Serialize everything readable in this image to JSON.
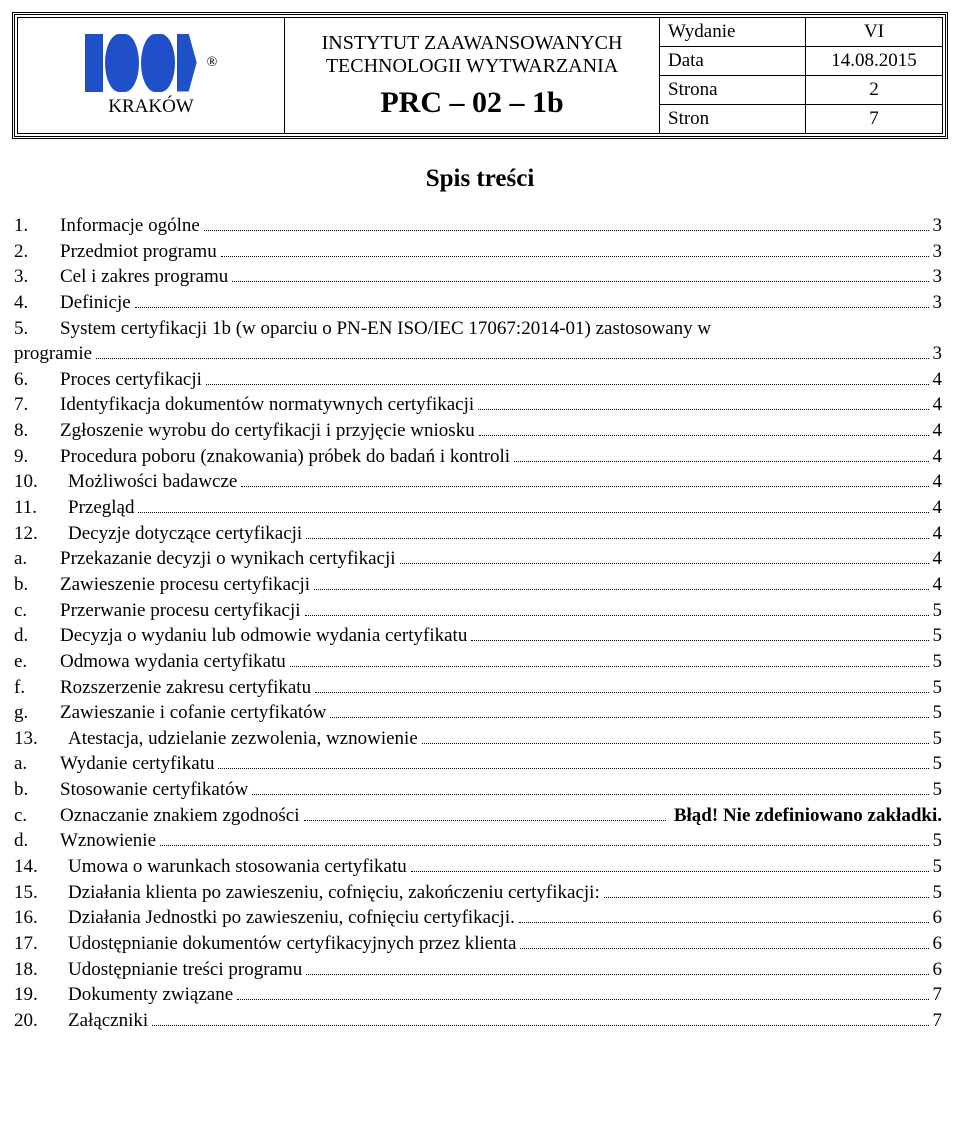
{
  "header": {
    "location": "KRAKÓW",
    "trademark": "®",
    "institute_line1": "INSTYTUT ZAAWANSOWANYCH",
    "institute_line2": "TECHNOLOGII WYTWARZANIA",
    "doc_code": "PRC – 02 – 1b",
    "info": [
      {
        "label": "Wydanie",
        "value": "VI"
      },
      {
        "label": "Data",
        "value": "14.08.2015"
      },
      {
        "label": "Strona",
        "value": "2"
      },
      {
        "label": "Stron",
        "value": "7"
      }
    ]
  },
  "toc_title": "Spis treści",
  "toc": {
    "items": [
      {
        "num": "1.",
        "text": "Informacje ogólne",
        "page": "3"
      },
      {
        "num": "2.",
        "text": "Przedmiot programu",
        "page": "3"
      },
      {
        "num": "3.",
        "text": "Cel i zakres programu",
        "page": "3"
      },
      {
        "num": "4.",
        "text": "Definicje",
        "page": "3"
      },
      {
        "num": "5.",
        "text_l1": "System certyfikacji 1b (w oparciu o PN-EN ISO/IEC 17067:2014-01) zastosowany w",
        "text_l2": "programie",
        "page": "3",
        "wrap": true
      },
      {
        "num": "6.",
        "text": "Proces certyfikacji",
        "page": "4"
      },
      {
        "num": "7.",
        "text": "Identyfikacja dokumentów normatywnych certyfikacji",
        "page": "4"
      },
      {
        "num": "8.",
        "text": "Zgłoszenie wyrobu do certyfikacji i przyjęcie wniosku",
        "page": "4"
      },
      {
        "num": "9.",
        "text": "Procedura poboru (znakowania) próbek do badań i kontroli",
        "page": "4"
      },
      {
        "num": "10.",
        "text": "Możliwości badawcze",
        "page": "4",
        "wide": true
      },
      {
        "num": "11.",
        "text": "Przegląd",
        "page": "4",
        "wide": true
      },
      {
        "num": "12.",
        "text": "Decyzje dotyczące certyfikacji",
        "page": "4",
        "wide": true
      },
      {
        "num": "a.",
        "text": "Przekazanie decyzji o wynikach certyfikacji",
        "page": "4"
      },
      {
        "num": "b.",
        "text": "Zawieszenie procesu certyfikacji",
        "page": "4"
      },
      {
        "num": "c.",
        "text": "Przerwanie procesu certyfikacji",
        "page": "5"
      },
      {
        "num": "d.",
        "text": "Decyzja o wydaniu lub odmowie wydania certyfikatu",
        "page": "5"
      },
      {
        "num": "e.",
        "text": "Odmowa wydania certyfikatu",
        "page": "5"
      },
      {
        "num": "f.",
        "text": "Rozszerzenie zakresu certyfikatu",
        "page": "5"
      },
      {
        "num": "g.",
        "text": "Zawieszanie i cofanie certyfikatów",
        "page": "5"
      },
      {
        "num": "13.",
        "text": "Atestacja, udzielanie zezwolenia, wznowienie",
        "page": "5",
        "wide": true
      },
      {
        "num": "a.",
        "text": "Wydanie certyfikatu",
        "page": "5"
      },
      {
        "num": "b.",
        "text": "Stosowanie certyfikatów",
        "page": "5"
      },
      {
        "num": "c.",
        "text": "Oznaczanie znakiem zgodności",
        "error": "Błąd! Nie zdefiniowano zakładki."
      },
      {
        "num": "d.",
        "text": "Wznowienie",
        "page": "5"
      },
      {
        "num": "14.",
        "text": "Umowa o warunkach stosowania certyfikatu",
        "page": "5",
        "wide": true
      },
      {
        "num": "15.",
        "text": "Działania klienta po zawieszeniu, cofnięciu, zakończeniu certyfikacji:",
        "page": "5",
        "wide": true
      },
      {
        "num": "16.",
        "text": "Działania Jednostki po zawieszeniu, cofnięciu certyfikacji.",
        "page": "6",
        "wide": true
      },
      {
        "num": "17.",
        "text": "Udostępnianie dokumentów certyfikacyjnych przez klienta",
        "page": "6",
        "wide": true
      },
      {
        "num": "18.",
        "text": "Udostępnianie treści programu",
        "page": "6",
        "wide": true
      },
      {
        "num": "19.",
        "text": "Dokumenty związane",
        "page": "7",
        "wide": true
      },
      {
        "num": "20.",
        "text": "Załączniki",
        "page": "7",
        "wide": true
      }
    ]
  },
  "styling": {
    "font_family": "Times New Roman",
    "body_font_size_pt": 14,
    "title_font_size_pt": 19,
    "logo_color": "#2050c8",
    "border_color": "#000000",
    "background_color": "#ffffff",
    "text_color": "#000000"
  }
}
